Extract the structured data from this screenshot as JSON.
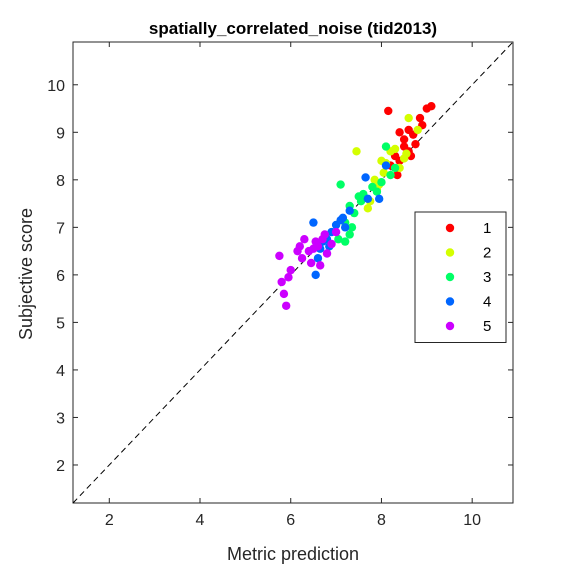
{
  "chart_data": {
    "type": "scatter",
    "title": "spatially_correlated_noise (tid2013)",
    "xlabel": "Metric prediction",
    "ylabel": "Subjective score",
    "xlim": [
      1.2,
      10.9
    ],
    "ylim": [
      1.2,
      10.9
    ],
    "xticks": [
      2,
      4,
      6,
      8,
      10
    ],
    "yticks": [
      2,
      3,
      4,
      5,
      6,
      7,
      8,
      9,
      10
    ],
    "grid": false,
    "diagonal": true,
    "legend_position": "right",
    "series": [
      {
        "name": "1",
        "color": "#ff0000",
        "points": [
          [
            8.15,
            9.45
          ],
          [
            8.85,
            9.3
          ],
          [
            9.0,
            9.5
          ],
          [
            9.1,
            9.55
          ],
          [
            8.9,
            9.15
          ],
          [
            8.6,
            9.05
          ],
          [
            8.4,
            9.0
          ],
          [
            8.7,
            8.95
          ],
          [
            8.5,
            8.85
          ],
          [
            8.75,
            8.75
          ],
          [
            8.6,
            8.6
          ],
          [
            8.65,
            8.5
          ],
          [
            8.3,
            8.5
          ],
          [
            8.4,
            8.4
          ],
          [
            8.2,
            8.3
          ],
          [
            8.5,
            8.7
          ],
          [
            8.35,
            8.1
          ]
        ]
      },
      {
        "name": "2",
        "color": "#d4ff00",
        "points": [
          [
            8.6,
            9.3
          ],
          [
            8.8,
            9.05
          ],
          [
            8.3,
            8.65
          ],
          [
            8.0,
            8.4
          ],
          [
            8.5,
            8.45
          ],
          [
            8.1,
            8.35
          ],
          [
            7.85,
            8.0
          ],
          [
            7.9,
            7.8
          ],
          [
            8.2,
            8.6
          ],
          [
            8.05,
            8.15
          ],
          [
            7.75,
            7.55
          ],
          [
            7.7,
            7.4
          ],
          [
            7.45,
            8.6
          ],
          [
            8.4,
            8.25
          ],
          [
            7.95,
            7.9
          ],
          [
            8.55,
            8.55
          ]
        ]
      },
      {
        "name": "3",
        "color": "#00ff66",
        "points": [
          [
            8.1,
            8.7
          ],
          [
            7.1,
            7.9
          ],
          [
            7.9,
            7.75
          ],
          [
            7.6,
            7.7
          ],
          [
            7.5,
            7.65
          ],
          [
            7.8,
            7.85
          ],
          [
            7.3,
            7.45
          ],
          [
            7.4,
            7.3
          ],
          [
            7.2,
            7.1
          ],
          [
            7.55,
            7.55
          ],
          [
            8.0,
            7.95
          ],
          [
            7.3,
            6.85
          ],
          [
            7.05,
            6.75
          ],
          [
            7.2,
            6.7
          ],
          [
            7.35,
            7.0
          ],
          [
            8.2,
            8.1
          ],
          [
            8.3,
            8.25
          ]
        ]
      },
      {
        "name": "4",
        "color": "#0066ff",
        "points": [
          [
            7.65,
            8.05
          ],
          [
            7.95,
            7.6
          ],
          [
            7.7,
            7.6
          ],
          [
            7.3,
            7.35
          ],
          [
            7.15,
            7.2
          ],
          [
            7.0,
            7.05
          ],
          [
            7.2,
            7.0
          ],
          [
            6.5,
            7.1
          ],
          [
            6.8,
            6.75
          ],
          [
            6.7,
            6.7
          ],
          [
            6.6,
            6.35
          ],
          [
            6.55,
            6.0
          ],
          [
            6.65,
            6.55
          ],
          [
            6.9,
            6.9
          ],
          [
            7.1,
            7.15
          ],
          [
            6.85,
            6.6
          ],
          [
            8.1,
            8.3
          ]
        ]
      },
      {
        "name": "5",
        "color": "#cc00ff",
        "points": [
          [
            6.3,
            6.75
          ],
          [
            6.0,
            6.1
          ],
          [
            6.15,
            6.5
          ],
          [
            6.4,
            6.5
          ],
          [
            6.5,
            6.55
          ],
          [
            6.6,
            6.6
          ],
          [
            6.7,
            6.75
          ],
          [
            6.9,
            6.65
          ],
          [
            6.8,
            6.45
          ],
          [
            6.65,
            6.2
          ],
          [
            5.8,
            5.85
          ],
          [
            5.85,
            5.6
          ],
          [
            5.9,
            5.35
          ],
          [
            5.75,
            6.4
          ],
          [
            5.95,
            5.95
          ],
          [
            6.25,
            6.35
          ],
          [
            6.45,
            6.25
          ],
          [
            6.75,
            6.85
          ],
          [
            7.0,
            6.9
          ],
          [
            6.2,
            6.6
          ],
          [
            6.55,
            6.7
          ]
        ]
      }
    ]
  }
}
